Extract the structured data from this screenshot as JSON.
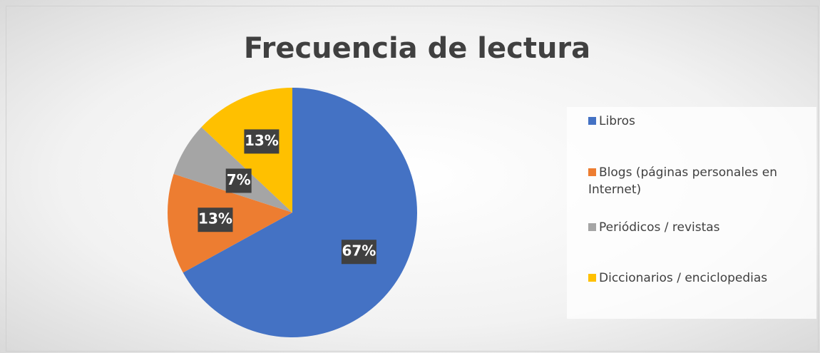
{
  "chart_data": {
    "type": "pie",
    "title": "Frecuencia de lectura",
    "categories": [
      "Libros",
      "Blogs (páginas personales en Internet)",
      "Periódicos / revistas",
      "Diccionarios / enciclopedias"
    ],
    "values": [
      67,
      13,
      7,
      13
    ],
    "value_labels": [
      "67%",
      "13%",
      "7%",
      "13%"
    ],
    "colors": [
      "#4472c4",
      "#ed7d31",
      "#a5a5a5",
      "#ffc000"
    ],
    "legend": "right"
  }
}
